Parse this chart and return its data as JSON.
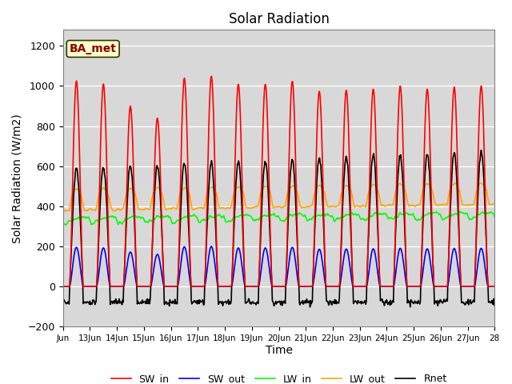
{
  "title": "Solar Radiation",
  "ylabel": "Solar Radiation (W/m2)",
  "xlabel": "Time",
  "ylim": [
    -200,
    1280
  ],
  "xlim": [
    0,
    16
  ],
  "legend_entries": [
    "SW_in",
    "SW_out",
    "LW_in",
    "LW_out",
    "Rnet"
  ],
  "line_colors": [
    "red",
    "blue",
    "lime",
    "orange",
    "black"
  ],
  "line_widths": [
    1.2,
    1.2,
    1.2,
    1.2,
    1.2
  ],
  "tick_labels": [
    "Jun",
    "13Jun",
    "14Jun",
    "15Jun",
    "16Jun",
    "17Jun",
    "18Jun",
    "19Jun",
    "20Jun",
    "21Jun",
    "22Jun",
    "23Jun",
    "24Jun",
    "25Jun",
    "26Jun",
    "27Jun",
    "28"
  ],
  "annotation_text": "BA_met",
  "annotation_color": "#8B0000",
  "annotation_bg": "#FFFFCC",
  "plot_bg_color": "#D8D8D8",
  "fig_bg_color": "#FFFFFF",
  "yticks": [
    -200,
    0,
    200,
    400,
    600,
    800,
    1000,
    1200
  ],
  "title_fontsize": 12,
  "label_fontsize": 10,
  "peak_days_SW": [
    1025,
    1010,
    900,
    840,
    1040,
    1050,
    1010,
    1010,
    1025,
    975,
    980,
    985,
    1000,
    985,
    995,
    1000
  ],
  "n_days": 16
}
